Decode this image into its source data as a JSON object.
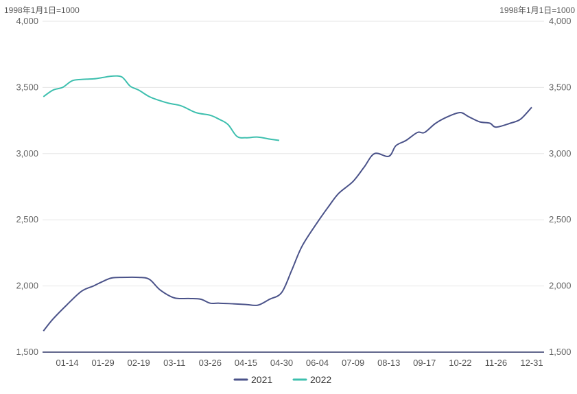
{
  "chart_data": {
    "type": "line",
    "unit_label_left": "1998年1月1日=1000",
    "unit_label_right": "1998年1月1日=1000",
    "x_ticks": [
      "01-14",
      "01-29",
      "02-19",
      "03-11",
      "03-26",
      "04-15",
      "04-30",
      "06-04",
      "07-09",
      "08-13",
      "09-17",
      "10-22",
      "11-26",
      "12-31"
    ],
    "ylim": [
      1500,
      4000
    ],
    "y_ticks": [
      1500,
      2000,
      2500,
      3000,
      3500,
      4000
    ],
    "y_tick_labels": [
      "1,500",
      "2,000",
      "2,500",
      "3,000",
      "3,500",
      "4,000"
    ],
    "grid": "horizontal",
    "legend_position": "bottom",
    "series": [
      {
        "name": "2021",
        "color": "#4a5289",
        "x": [
          "01-04",
          "01-08",
          "01-14",
          "01-20",
          "01-25",
          "01-29",
          "02-03",
          "02-09",
          "02-19",
          "02-25",
          "03-03",
          "03-11",
          "03-17",
          "03-22",
          "03-26",
          "03-31",
          "04-08",
          "04-15",
          "04-20",
          "04-25",
          "04-30",
          "05-10",
          "05-20",
          "06-04",
          "06-15",
          "06-25",
          "07-09",
          "07-20",
          "07-30",
          "08-13",
          "08-20",
          "08-30",
          "09-10",
          "09-17",
          "09-28",
          "10-10",
          "10-22",
          "10-30",
          "11-10",
          "11-20",
          "11-26",
          "12-10",
          "12-20",
          "12-31"
        ],
        "values": [
          1660,
          1750,
          1860,
          1960,
          2000,
          2035,
          2060,
          2065,
          2065,
          2050,
          1970,
          1910,
          1905,
          1900,
          1870,
          1870,
          1865,
          1860,
          1855,
          1900,
          1950,
          2120,
          2300,
          2480,
          2600,
          2700,
          2790,
          2900,
          3000,
          2980,
          3060,
          3100,
          3160,
          3160,
          3230,
          3280,
          3310,
          3280,
          3240,
          3230,
          3200,
          3230,
          3260,
          3350
        ]
      },
      {
        "name": "2022",
        "color": "#3dbfae",
        "x": [
          "01-04",
          "01-08",
          "01-12",
          "01-16",
          "01-20",
          "01-25",
          "01-29",
          "02-03",
          "02-09",
          "02-14",
          "02-19",
          "02-25",
          "03-03",
          "03-08",
          "03-14",
          "03-20",
          "03-26",
          "03-31",
          "04-05",
          "04-10",
          "04-15",
          "04-20",
          "04-25",
          "04-29"
        ],
        "values": [
          3430,
          3480,
          3500,
          3550,
          3560,
          3565,
          3575,
          3585,
          3580,
          3510,
          3480,
          3430,
          3400,
          3380,
          3360,
          3310,
          3290,
          3260,
          3220,
          3130,
          3120,
          3125,
          3110,
          3100
        ]
      }
    ]
  }
}
